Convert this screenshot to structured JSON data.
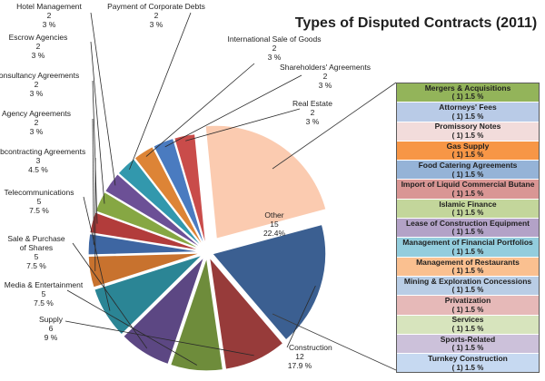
{
  "chart_data": {
    "type": "pie",
    "title": "Types of Disputed Contracts (2011)",
    "slices": [
      {
        "label": "Construction",
        "count": "12",
        "percent": "17.9 %",
        "value": 12,
        "color": "#3b5f91"
      },
      {
        "label": "Supply",
        "count": "6",
        "percent": "9 %",
        "value": 6,
        "color": "#973b3a"
      },
      {
        "label": "Media &  Entertainment",
        "count": "5",
        "percent": "7.5 %",
        "value": 5,
        "color": "#6e8c3b"
      },
      {
        "label": "Sale & Purchase of Shares",
        "count": "5",
        "percent": "7.5 %",
        "value": 5,
        "color": "#5c4783"
      },
      {
        "label": "Telecommunications",
        "count": "5",
        "percent": "7.5 %",
        "value": 5,
        "color": "#2b8595"
      },
      {
        "label": "Subcontracting Agreements",
        "count": "3",
        "percent": "4.5 %",
        "value": 3,
        "color": "#c8722e"
      },
      {
        "label": "Agency Agreements",
        "count": "2",
        "percent": "3 %",
        "value": 2,
        "color": "#3e66a2"
      },
      {
        "label": "Consultancy Agreements",
        "count": "2",
        "percent": "3 %",
        "value": 2,
        "color": "#b23c3b"
      },
      {
        "label": "Escrow Agencies",
        "count": "2",
        "percent": "3 %",
        "value": 2,
        "color": "#86a743"
      },
      {
        "label": "Hotel Management",
        "count": "2",
        "percent": "3 %",
        "value": 2,
        "color": "#6c5096"
      },
      {
        "label": "Payment of Corporate Debts",
        "count": "2",
        "percent": "3 %",
        "value": 2,
        "color": "#3298ad"
      },
      {
        "label": "International Sale of Goods",
        "count": "2",
        "percent": "3 %",
        "value": 2,
        "color": "#dd8436"
      },
      {
        "label": "Shareholders' Agreements",
        "count": "2",
        "percent": "3 %",
        "value": 2,
        "color": "#4a7bc0"
      },
      {
        "label": "Real Estate",
        "count": "2",
        "percent": "3 %",
        "value": 2,
        "color": "#c94c4a"
      },
      {
        "label": "Other",
        "count": "15",
        "percent": "22.4%",
        "value": 15,
        "color": "#fbcbb0"
      }
    ],
    "legend_title_attorneys": "",
    "other_breakdown": [
      {
        "name": "Mergers & Acquisitions",
        "value": "( 1)  1.5 %",
        "color": "#93b45a"
      },
      {
        "name": "Attorneys' Fees",
        "value": "( 1)  1.5 %",
        "color": "#b9cbe7"
      },
      {
        "name": "Promissory Notes",
        "value": "( 1)  1.5 %",
        "color": "#f2dcdb"
      },
      {
        "name": "Gas Supply",
        "value": "( 1)  1.5 %",
        "color": "#f79646"
      },
      {
        "name": "Food Catering Agreements",
        "value": "( 1)  1.5 %",
        "color": "#95b3d7"
      },
      {
        "name": "Import of Liquid Commercial Butane",
        "value": "( 1)  1.5 %",
        "color": "#d99694"
      },
      {
        "name": "Islamic Finance",
        "value": "( 1)  1.5 %",
        "color": "#c3d69b"
      },
      {
        "name": "Lease of Construction Equipment",
        "value": "( 1)  1.5 %",
        "color": "#b3a2c7"
      },
      {
        "name": "Management of Financial Portfolios",
        "value": "( 1)  1.5 %",
        "color": "#93cddd"
      },
      {
        "name": "Management of Restaurants",
        "value": "( 1)  1.5 %",
        "color": "#fac090"
      },
      {
        "name": "Mining & Exploration Concessions",
        "value": "( 1)  1.5 %",
        "color": "#b9cde5"
      },
      {
        "name": "Privatization",
        "value": "( 1)  1.5 %",
        "color": "#e6b9b8"
      },
      {
        "name": "Services",
        "value": "( 1)  1.5 %",
        "color": "#d7e4bd"
      },
      {
        "name": "Sports-Related",
        "value": "( 1)  1.5 %",
        "color": "#ccc1da"
      },
      {
        "name": "Turnkey Construction",
        "value": "( 1)  1.5 %",
        "color": "#c6d9f1"
      }
    ]
  }
}
